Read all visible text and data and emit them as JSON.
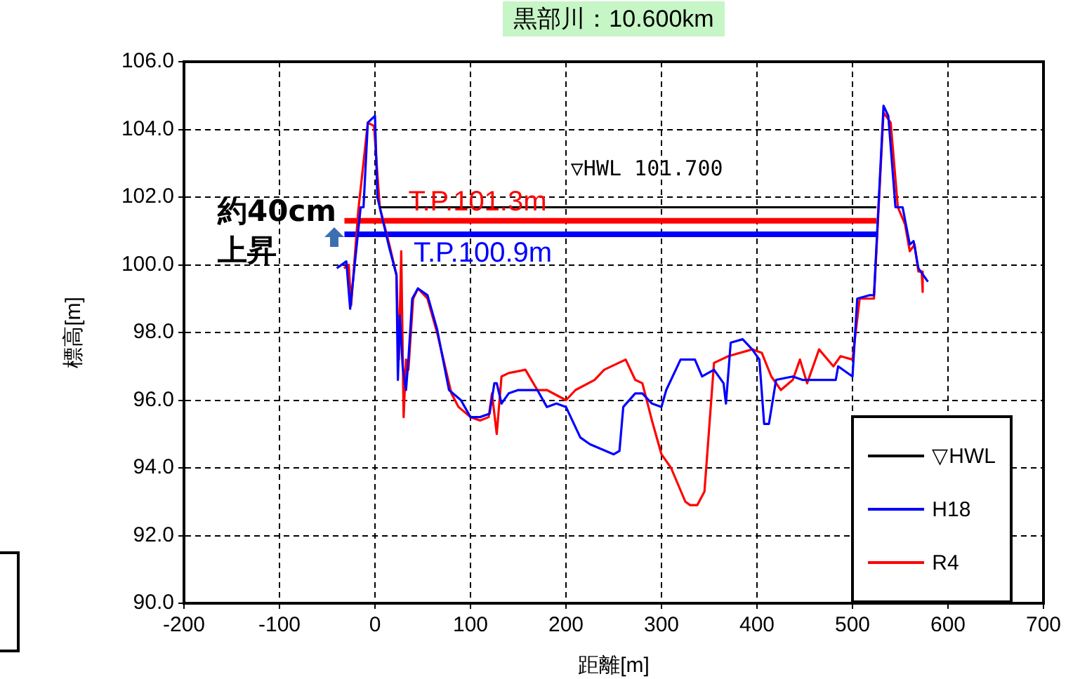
{
  "chart_data": {
    "type": "line",
    "title": "黒部川：10.600km",
    "xlabel": "距離[m]",
    "ylabel": "標高[m]",
    "xlim": [
      -200,
      700
    ],
    "xticks": [
      -200,
      -100,
      0,
      100,
      200,
      300,
      400,
      500,
      600,
      700
    ],
    "ylim": [
      90,
      106
    ],
    "yticks": [
      {
        "value": 90,
        "label": "90.0"
      },
      {
        "value": 92,
        "label": "92.0"
      },
      {
        "value": 94,
        "label": "94.0"
      },
      {
        "value": 96,
        "label": "96.0"
      },
      {
        "value": 98,
        "label": "98.0"
      },
      {
        "value": 100,
        "label": "100.0"
      },
      {
        "value": 102,
        "label": "102.0"
      },
      {
        "value": 104,
        "label": "104.0"
      },
      {
        "value": 106,
        "label": "106.0"
      }
    ],
    "grid": true,
    "legend": "bottom right",
    "marker": "none",
    "series": [
      {
        "name": "▽HWL",
        "color": "#000000",
        "x": [
          5,
          525
        ],
        "values": [
          101.7,
          101.7
        ]
      },
      {
        "name": "H18",
        "color": "#0000ff",
        "x": [
          -40,
          -30,
          -26,
          -15,
          -12,
          -7.5,
          0,
          2.5,
          15,
          22.5,
          24,
          26,
          29,
          32.5,
          35,
          39,
          45,
          55,
          65,
          77.5,
          90,
          100,
          110,
          120,
          125,
          127.5,
          132.5,
          140,
          150,
          170,
          180,
          190,
          200,
          215,
          225,
          250,
          256,
          260,
          272.5,
          280,
          290,
          300,
          305,
          320,
          335,
          342.5,
          355,
          365,
          367.5,
          372.5,
          385,
          395,
          402.5,
          407.5,
          412.5,
          420,
          437.5,
          447.5,
          455,
          482.5,
          485,
          500,
          505,
          517.5,
          522.5,
          532.5,
          537.5,
          545,
          552.5,
          560,
          564,
          569,
          579
        ],
        "values": [
          99.9,
          100.1,
          98.7,
          101.7,
          101.7,
          104.2,
          104.4,
          102.0,
          100.5,
          99.7,
          96.6,
          98.5,
          97.0,
          96.3,
          97.2,
          99.0,
          99.3,
          99.1,
          98.1,
          96.3,
          96.0,
          95.5,
          95.5,
          95.6,
          96.5,
          96.5,
          95.9,
          96.2,
          96.3,
          96.3,
          95.8,
          95.9,
          95.8,
          94.9,
          94.7,
          94.4,
          94.5,
          95.8,
          96.2,
          96.2,
          95.9,
          95.8,
          96.3,
          97.2,
          97.2,
          96.7,
          96.9,
          96.5,
          95.9,
          97.7,
          97.8,
          97.5,
          97.2,
          95.3,
          95.3,
          96.6,
          96.7,
          96.6,
          96.6,
          96.6,
          97.0,
          96.7,
          99.0,
          99.1,
          99.1,
          104.7,
          104.4,
          101.7,
          101.7,
          100.6,
          100.7,
          99.9,
          99.5
        ]
      },
      {
        "name": "R4",
        "color": "#ff0000",
        "x": [
          -32.5,
          -27.5,
          -25,
          -17.5,
          -7.5,
          -1,
          5,
          15,
          22.5,
          25,
          27.5,
          30,
          32.5,
          35,
          40,
          45,
          55,
          65,
          80,
          87.5,
          100,
          110,
          119,
          122.5,
          127.5,
          132.5,
          140,
          157.5,
          170,
          180,
          200,
          210,
          230,
          240,
          262.5,
          272.5,
          280,
          290,
          300,
          310,
          325,
          330,
          337.5,
          345,
          355,
          370,
          395,
          405,
          415,
          425,
          437.5,
          445,
          452.5,
          465,
          480,
          487.5,
          500,
          507.5,
          522.5,
          532.5,
          540,
          547.5,
          555,
          560,
          565,
          569,
          572.5,
          573.5
        ],
        "values": [
          99.9,
          100.0,
          98.8,
          101.6,
          104.2,
          104.1,
          101.7,
          100.6,
          99.7,
          97.2,
          100.4,
          95.5,
          97.2,
          96.9,
          99.0,
          99.3,
          99.0,
          98.0,
          96.2,
          95.8,
          95.5,
          95.4,
          95.5,
          96.2,
          95.0,
          96.7,
          96.8,
          96.9,
          96.3,
          96.3,
          96.0,
          96.3,
          96.6,
          96.9,
          97.2,
          96.6,
          96.5,
          95.4,
          94.4,
          94.0,
          93.0,
          92.9,
          92.9,
          93.3,
          97.1,
          97.3,
          97.5,
          97.4,
          96.7,
          96.3,
          96.6,
          97.2,
          96.5,
          97.5,
          97.0,
          97.3,
          97.2,
          99.0,
          99.0,
          104.5,
          104.2,
          101.7,
          101.2,
          100.4,
          100.6,
          99.8,
          99.8,
          99.2
        ]
      },
      {
        "name": "T.P.101.3m",
        "type": "line",
        "color": "#ff0000",
        "x": [
          -32,
          525
        ],
        "values": [
          101.3,
          101.3
        ]
      },
      {
        "name": "T.P.100.9m",
        "type": "line",
        "color": "#0000ff",
        "x": [
          -32,
          525
        ],
        "values": [
          100.9,
          100.9
        ]
      }
    ],
    "annotations": [
      "▽HWL 101.700",
      "約40cm\n上昇"
    ]
  }
}
